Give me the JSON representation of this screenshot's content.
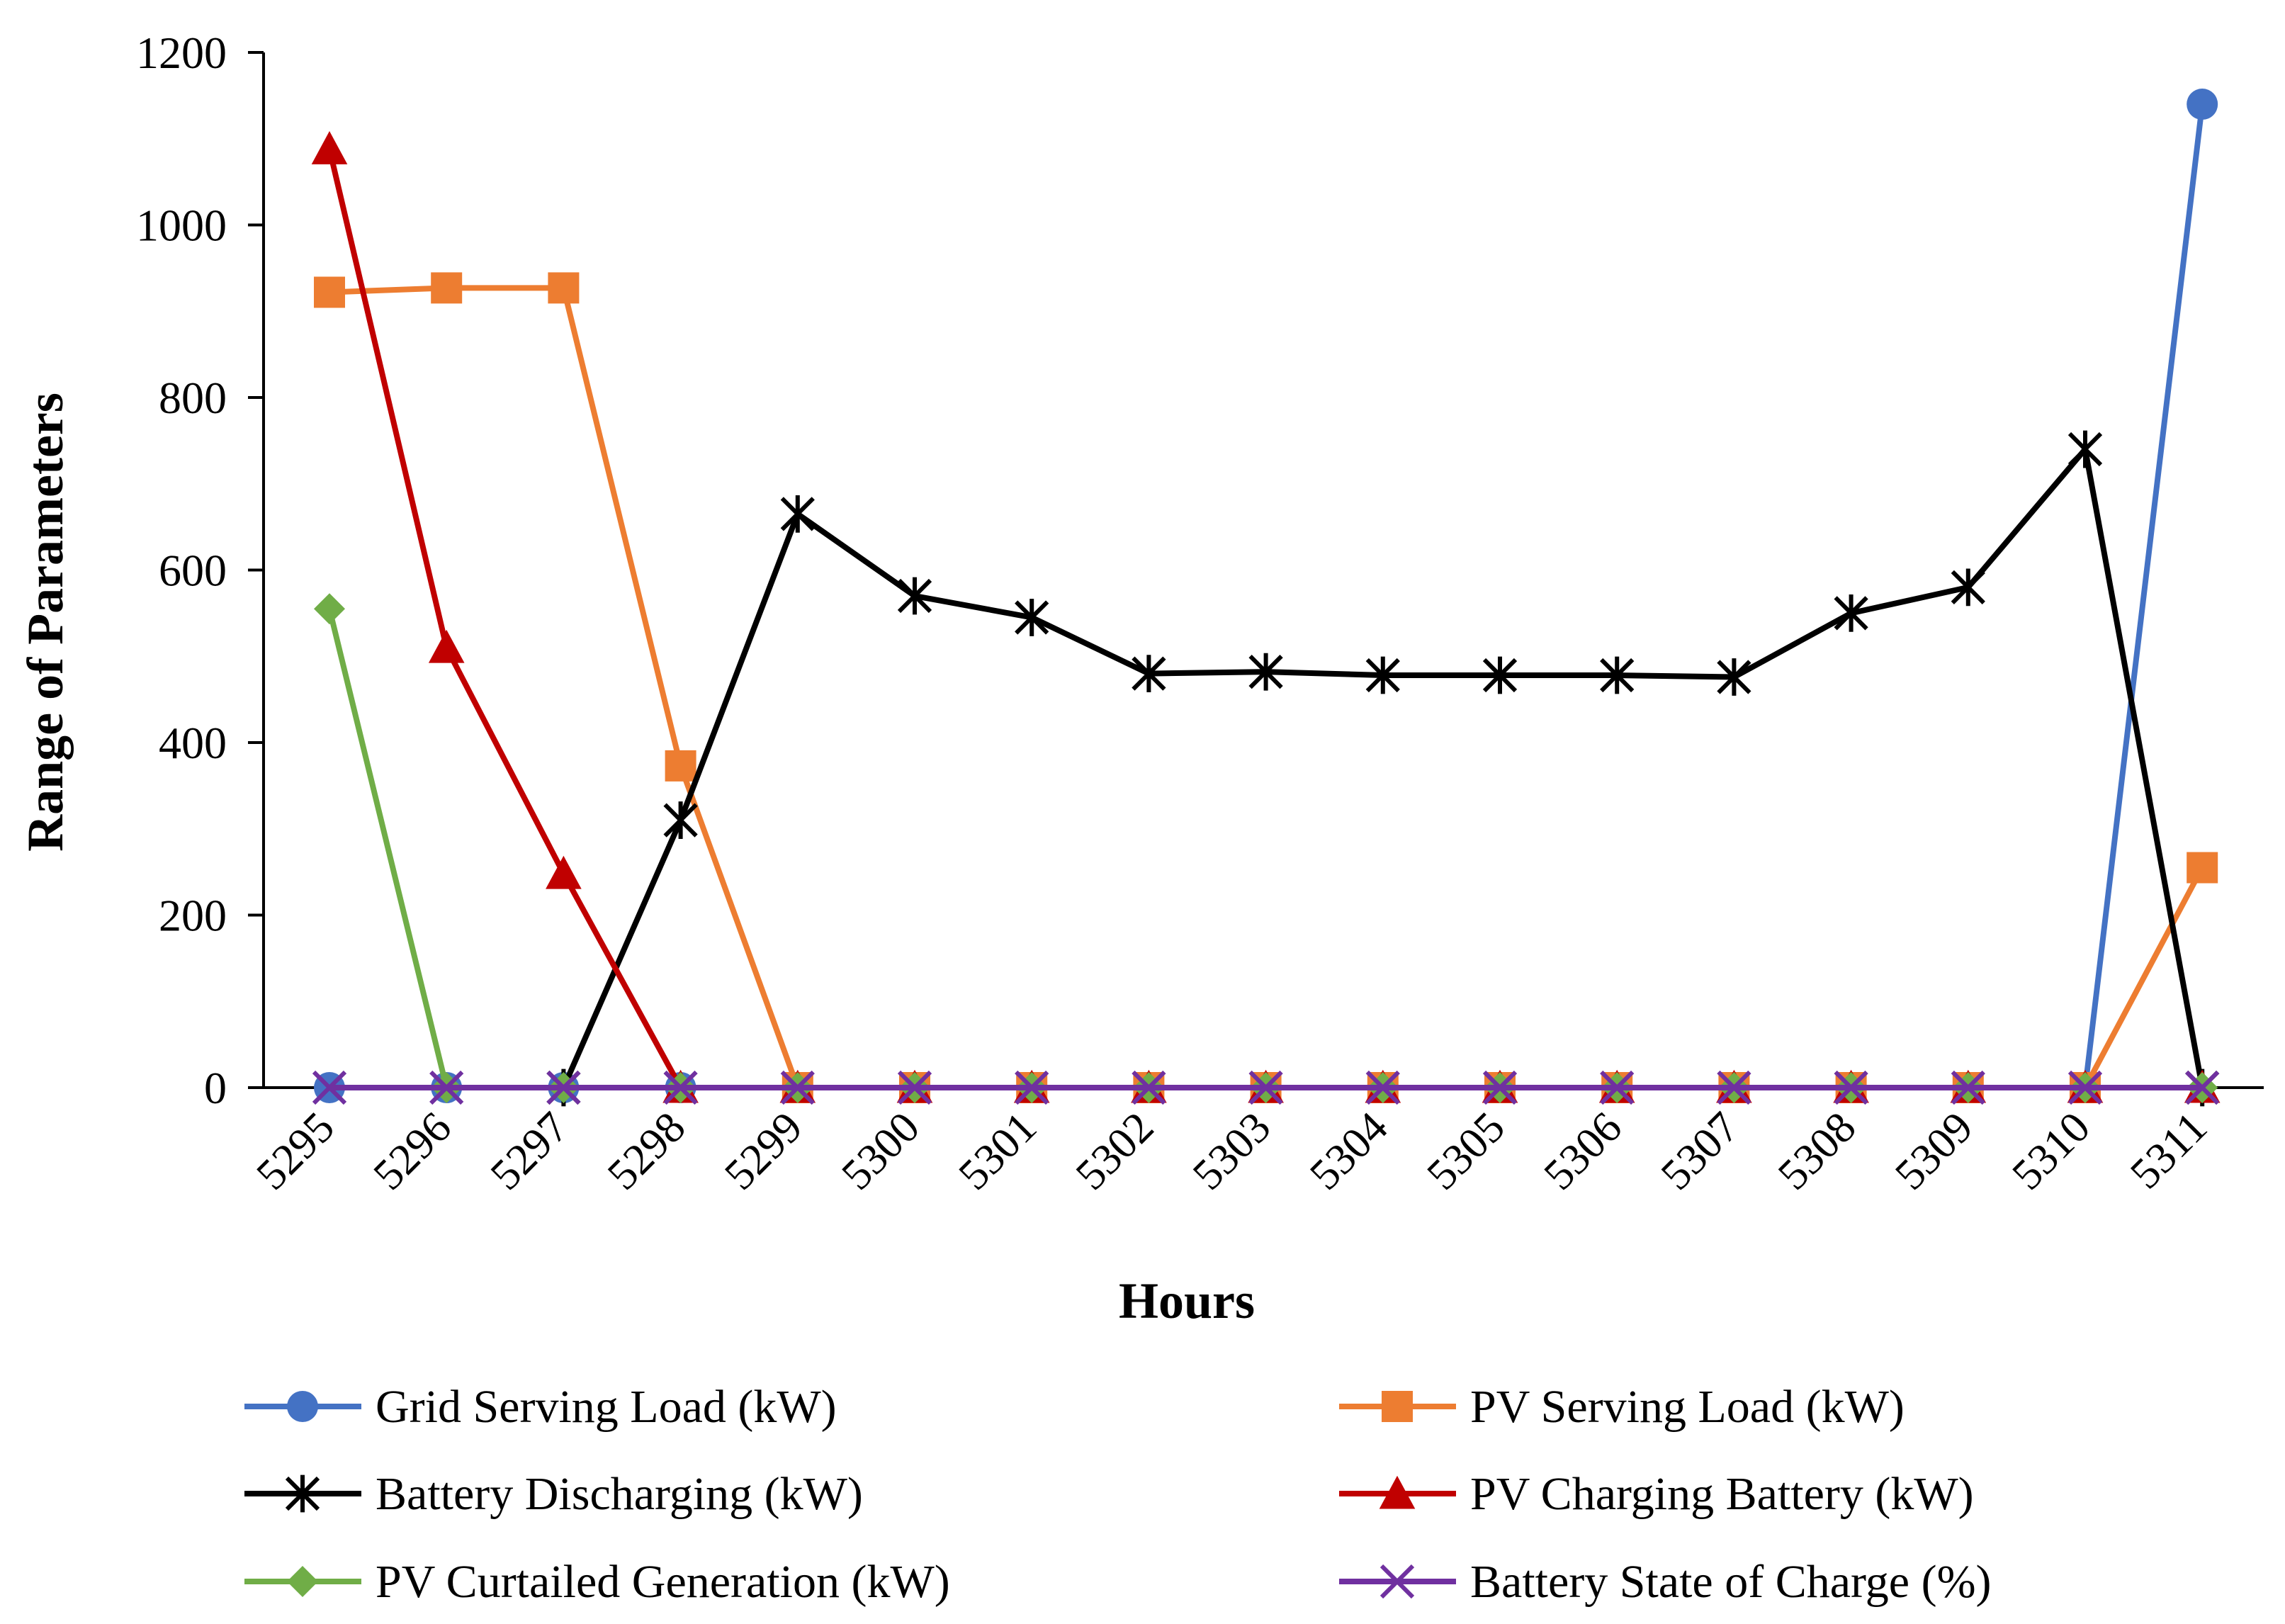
{
  "chart_data": {
    "type": "line",
    "title": "",
    "xlabel": "Hours",
    "ylabel": "Range of Parameters",
    "ylim": [
      0,
      1200
    ],
    "yticks": [
      0,
      200,
      400,
      600,
      800,
      1000,
      1200
    ],
    "categories": [
      "5295",
      "5296",
      "5297",
      "5298",
      "5299",
      "5300",
      "5301",
      "5302",
      "5303",
      "5304",
      "5305",
      "5306",
      "5307",
      "5308",
      "5309",
      "5310",
      "5311"
    ],
    "grid": false,
    "legend_position": "bottom",
    "series": [
      {
        "name": "Grid Serving Load (kW)",
        "color": "#4472C4",
        "marker": "circle",
        "values": [
          0,
          0,
          0,
          0,
          0,
          0,
          0,
          0,
          0,
          0,
          0,
          0,
          0,
          0,
          0,
          0,
          1140
        ]
      },
      {
        "name": "PV Serving Load (kW)",
        "color": "#ED7D31",
        "marker": "square",
        "values": [
          922,
          927,
          927,
          373,
          0,
          0,
          0,
          0,
          0,
          0,
          0,
          0,
          0,
          0,
          0,
          0,
          255
        ]
      },
      {
        "name": "Battery Discharging (kW)",
        "color": "#000000",
        "marker": "asterisk",
        "values": [
          null,
          null,
          0,
          310,
          665,
          570,
          545,
          480,
          482,
          478,
          478,
          478,
          476,
          550,
          580,
          740,
          0
        ]
      },
      {
        "name": "PV Charging Battery (kW)",
        "color": "#C00000",
        "marker": "triangle",
        "values": [
          1088,
          510,
          248,
          0,
          0,
          0,
          0,
          0,
          0,
          0,
          0,
          0,
          0,
          0,
          0,
          0,
          0
        ]
      },
      {
        "name": "PV Curtailed Generation (kW)",
        "color": "#70AD47",
        "marker": "diamond",
        "values": [
          555,
          0,
          0,
          0,
          0,
          0,
          0,
          0,
          0,
          0,
          0,
          0,
          0,
          0,
          0,
          0,
          0
        ]
      },
      {
        "name": "Battery State of Charge (%)",
        "color": "#7030A0",
        "marker": "x",
        "values": [
          0,
          0,
          0,
          0,
          0,
          0,
          0,
          0,
          0,
          0,
          0,
          0,
          0,
          0,
          0,
          0,
          0
        ]
      }
    ]
  }
}
